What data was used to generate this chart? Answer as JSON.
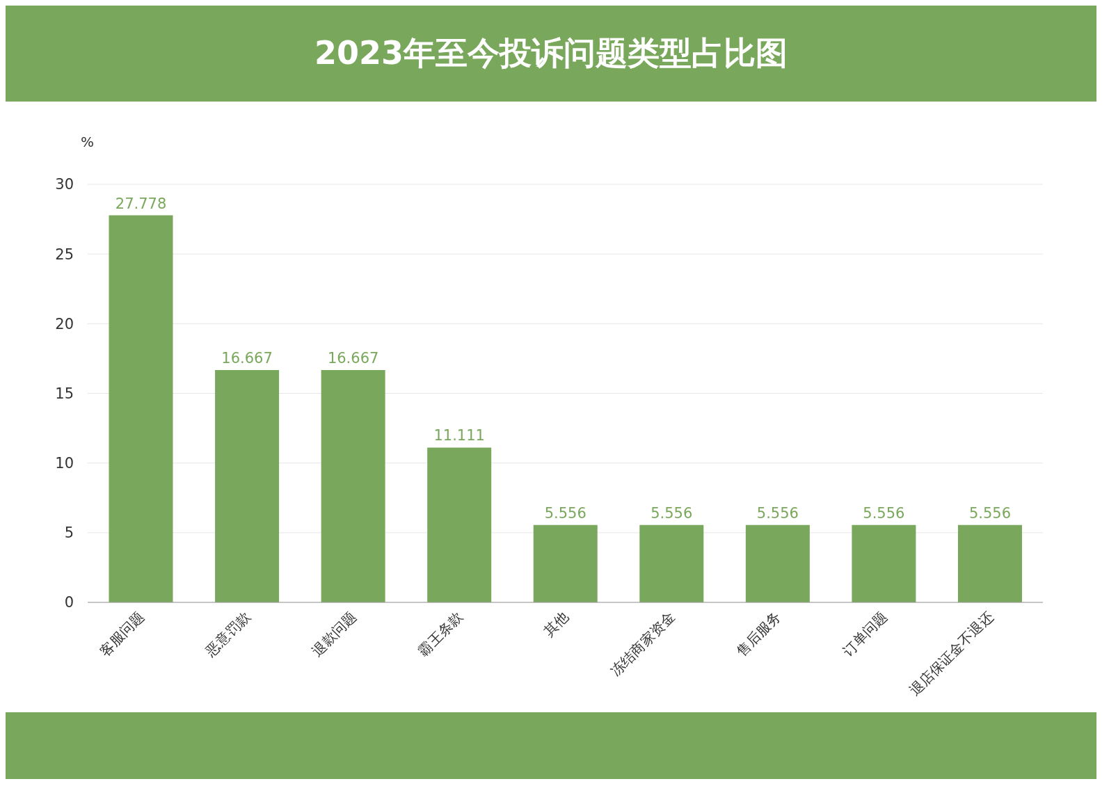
{
  "chart_data": {
    "type": "bar",
    "title": "2023年至今投诉问题类型占比图",
    "ylabel": "%",
    "categories": [
      "客服问题",
      "恶意罚款",
      "退款问题",
      "霸王条款",
      "其他",
      "冻结商家资金",
      "售后服务",
      "订单问题",
      "退店保证金不退还"
    ],
    "values": [
      27.778,
      16.667,
      16.667,
      11.111,
      5.556,
      5.556,
      5.556,
      5.556,
      5.556
    ],
    "color": "#79a75b",
    "ylim": [
      0,
      30
    ],
    "yticks": [
      0,
      5,
      10,
      15,
      20,
      25,
      30
    ],
    "grid": "y",
    "data_labels": true
  }
}
